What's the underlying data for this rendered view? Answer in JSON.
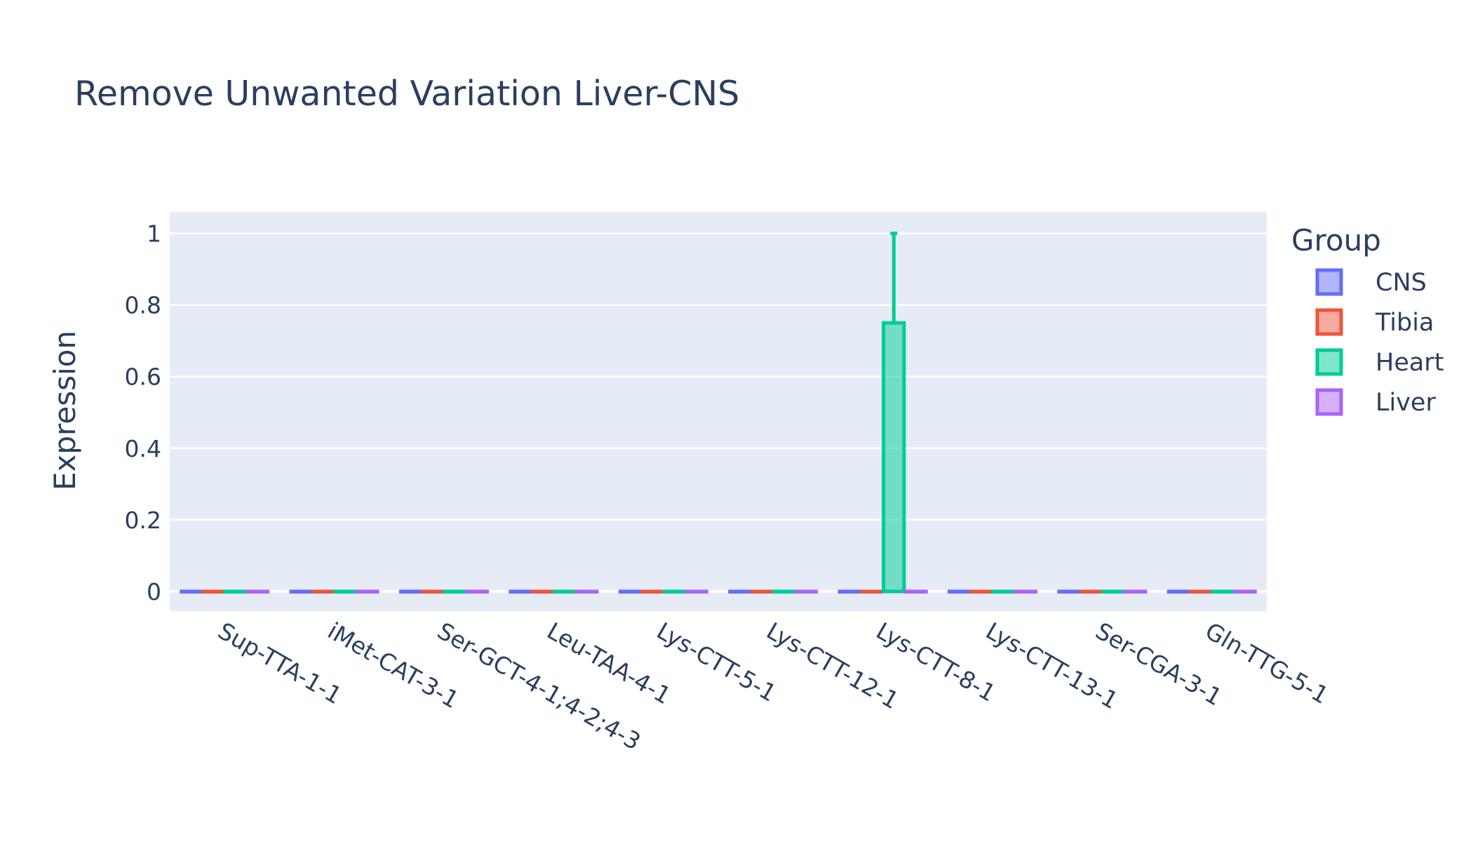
{
  "chart_data": {
    "type": "bar",
    "title": "Remove Unwanted Variation Liver-CNS",
    "xlabel": "",
    "ylabel": "Expression",
    "ylim": [
      -0.055,
      1.06
    ],
    "yticks": [
      0,
      0.2,
      0.4,
      0.6,
      0.8,
      1
    ],
    "ytick_labels": [
      "0",
      "0.2",
      "0.4",
      "0.6",
      "0.8",
      "1"
    ],
    "grid": true,
    "legend": {
      "title": "Group",
      "placement": "right"
    },
    "categories": [
      "Sup-TTA-1-1",
      "iMet-CAT-3-1",
      "Ser-GCT-4-1;4-2;4-3",
      "Leu-TAA-4-1",
      "Lys-CTT-5-1",
      "Lys-CTT-12-1",
      "Lys-CTT-8-1",
      "Lys-CTT-13-1",
      "Ser-CGA-3-1",
      "Gln-TTG-5-1"
    ],
    "series": [
      {
        "name": "CNS",
        "color": "#636efa",
        "values": [
          0,
          0,
          0,
          0,
          0,
          0,
          0,
          0,
          0,
          0
        ],
        "error_plus": [
          0,
          0,
          0,
          0,
          0,
          0,
          0,
          0,
          0,
          0
        ]
      },
      {
        "name": "Tibia",
        "color": "#ef553b",
        "values": [
          0,
          0,
          0,
          0,
          0,
          0,
          0,
          0,
          0,
          0
        ],
        "error_plus": [
          0,
          0,
          0,
          0,
          0,
          0,
          0,
          0,
          0,
          0
        ]
      },
      {
        "name": "Heart",
        "color": "#00cc96",
        "values": [
          0,
          0,
          0,
          0,
          0,
          0,
          0.75,
          0,
          0,
          0
        ],
        "error_plus": [
          0,
          0,
          0,
          0,
          0,
          0,
          0.25,
          0,
          0,
          0
        ]
      },
      {
        "name": "Liver",
        "color": "#ab63fa",
        "values": [
          0,
          0,
          0,
          0,
          0,
          0,
          0,
          0,
          0,
          0
        ],
        "error_plus": [
          0,
          0,
          0,
          0,
          0,
          0,
          0,
          0,
          0,
          0
        ]
      }
    ],
    "colors": {
      "plot_bg": "#e5ecf6",
      "grid": "#ffffff",
      "text": "#2a3f5f"
    }
  }
}
